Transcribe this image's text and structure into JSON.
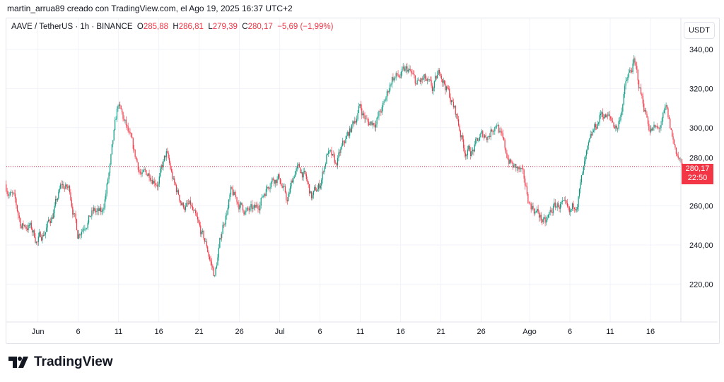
{
  "header": {
    "credit": "martin_arrua89 creado con TradingView.com, el Ago 19, 2025 16:37 UTC+2"
  },
  "legend": {
    "symbol": "AAVE / TetherUS · 1h · BINANCE",
    "open_label": "O",
    "open": "285,88",
    "high_label": "H",
    "high": "286,81",
    "low_label": "L",
    "low": "279,39",
    "close_label": "C",
    "close": "280,17",
    "change": "−5,69 (−1,99%)"
  },
  "price_axis": {
    "unit": "USDT"
  },
  "last_price": {
    "price": "280,17",
    "countdown": "22:50"
  },
  "branding": {
    "logo_text": "TradingView"
  },
  "colors": {
    "up": "#089981",
    "down": "#f23645",
    "grid": "#f0f3fa",
    "last_price": "#f23645"
  },
  "chart_data": {
    "type": "candlestick",
    "title": "AAVE / TetherUS · 1h · BINANCE",
    "ylim": [
      205,
      350
    ],
    "y_ticks": [
      {
        "v": 220,
        "label": "220,00"
      },
      {
        "v": 240,
        "label": "240,00"
      },
      {
        "v": 260,
        "label": "260,00"
      },
      {
        "v": 280,
        "label": "280,00"
      },
      {
        "v": 300,
        "label": "300,00"
      },
      {
        "v": 320,
        "label": "320,00"
      },
      {
        "v": 340,
        "label": "340,00"
      }
    ],
    "x_ticks": [
      {
        "day": 4,
        "label": "Jun"
      },
      {
        "day": 9,
        "label": "6"
      },
      {
        "day": 14,
        "label": "11"
      },
      {
        "day": 19,
        "label": "16"
      },
      {
        "day": 24,
        "label": "21"
      },
      {
        "day": 29,
        "label": "26"
      },
      {
        "day": 34,
        "label": "Jul"
      },
      {
        "day": 39,
        "label": "6"
      },
      {
        "day": 44,
        "label": "11"
      },
      {
        "day": 49,
        "label": "16"
      },
      {
        "day": 54,
        "label": "21"
      },
      {
        "day": 59,
        "label": "26"
      },
      {
        "day": 65,
        "label": "Ago"
      },
      {
        "day": 70,
        "label": "6"
      },
      {
        "day": 75,
        "label": "11"
      },
      {
        "day": 80,
        "label": "16"
      }
    ],
    "grid": true,
    "start_date": "2025-05-28",
    "daily_closes_approx": [
      271,
      264,
      250,
      250,
      242,
      248,
      257,
      270,
      268,
      246,
      253,
      257,
      255,
      279,
      311,
      300,
      286,
      275,
      277,
      273,
      286,
      270,
      261,
      259,
      248,
      239,
      224,
      250,
      266,
      261,
      257,
      257,
      266,
      275,
      275,
      262,
      279,
      277,
      264,
      270,
      288,
      280,
      291,
      300,
      311,
      302,
      304,
      311,
      326,
      326,
      329,
      322,
      324,
      318,
      329,
      318,
      306,
      289,
      288,
      295,
      297,
      304,
      288,
      280,
      277,
      262,
      257,
      250,
      259,
      261,
      253,
      264,
      282,
      297,
      308,
      304,
      300,
      322,
      333,
      315,
      300,
      298,
      308,
      291,
      280.17
    ],
    "last_close": 280.17
  }
}
